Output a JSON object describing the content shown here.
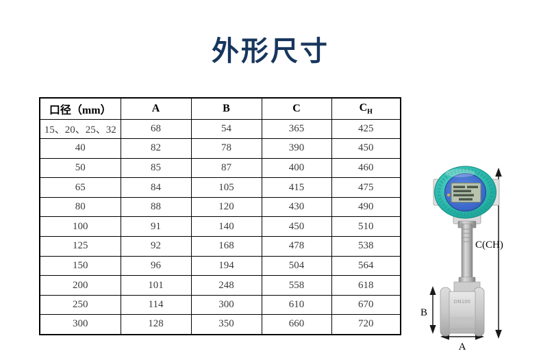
{
  "title": "外形尺寸",
  "table": {
    "headers": [
      {
        "label": "口径（mm）"
      },
      {
        "label": "A"
      },
      {
        "label": "B"
      },
      {
        "label": "C"
      },
      {
        "label": "C",
        "sub": "H"
      }
    ],
    "rows": [
      [
        "15、20、25、32",
        "68",
        "54",
        "365",
        "425"
      ],
      [
        "40",
        "82",
        "78",
        "390",
        "450"
      ],
      [
        "50",
        "85",
        "87",
        "400",
        "460"
      ],
      [
        "65",
        "84",
        "105",
        "415",
        "475"
      ],
      [
        "80",
        "88",
        "120",
        "430",
        "490"
      ],
      [
        "100",
        "91",
        "140",
        "450",
        "510"
      ],
      [
        "125",
        "92",
        "168",
        "478",
        "538"
      ],
      [
        "150",
        "96",
        "194",
        "504",
        "564"
      ],
      [
        "200",
        "101",
        "248",
        "558",
        "618"
      ],
      [
        "250",
        "114",
        "300",
        "610",
        "670"
      ],
      [
        "300",
        "128",
        "350",
        "660",
        "720"
      ]
    ]
  },
  "figure": {
    "description": "vortex flowmeter photo with dimension arrows",
    "dimension_labels": {
      "overall_height": "C(CH)",
      "body_height": "B",
      "body_width": "A"
    },
    "device_marking": "DN100"
  },
  "colors": {
    "title": "#17365d",
    "table_border": "#000000",
    "meter_head_teal": "#2bb7ab",
    "meter_face_blue": "#3a66c8",
    "lcd_screen": "#b9c3ae",
    "metal_gray": "#c8c8c8"
  }
}
